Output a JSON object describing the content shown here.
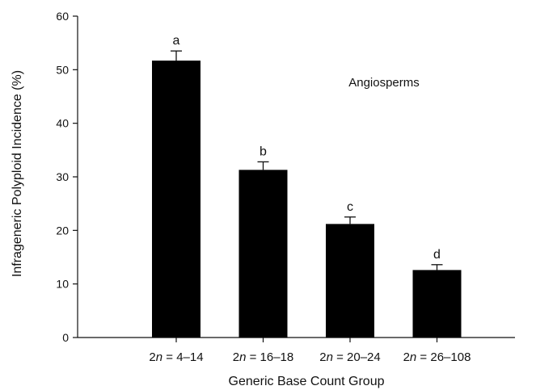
{
  "chart_data": {
    "type": "bar",
    "categories": [
      {
        "prefix": "2",
        "italic": "n",
        "range": " = 4–14"
      },
      {
        "prefix": "2",
        "italic": "n",
        "range": " = 16–18"
      },
      {
        "prefix": "2",
        "italic": "n",
        "range": " = 20–24"
      },
      {
        "prefix": "2",
        "italic": "n",
        "range": " = 26–108"
      }
    ],
    "values": [
      51.7,
      31.3,
      21.2,
      12.6
    ],
    "error_plus": [
      1.8,
      1.5,
      1.3,
      1.0
    ],
    "significance_letters": [
      "a",
      "b",
      "c",
      "d"
    ],
    "ylim": [
      0,
      60
    ],
    "yticks": [
      0,
      10,
      20,
      30,
      40,
      50,
      60
    ],
    "ylabel": "Infrageneric Polyploid Incidence (%)",
    "xlabel": "Generic Base Count Group",
    "annotation": "Angiosperms",
    "bar_color": "#000000",
    "grid": false,
    "legend": "none"
  }
}
